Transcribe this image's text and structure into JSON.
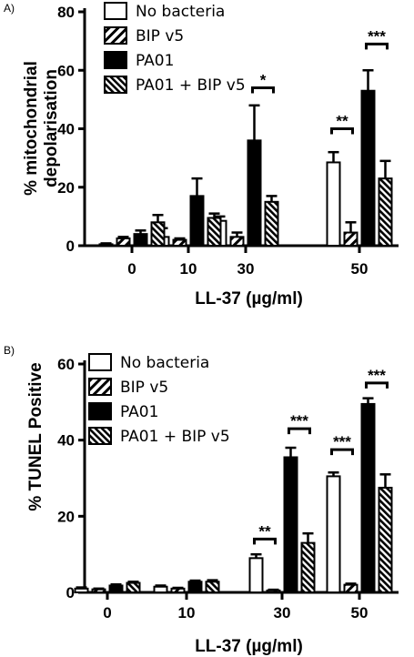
{
  "chart_data": [
    {
      "type": "bar",
      "panel_label": "A)",
      "title": "",
      "xlabel": "LL-37 (µg/ml)",
      "ylabel": "% mitochondrial depolarisation",
      "ylim": [
        0,
        80
      ],
      "yticks": [
        0,
        20,
        40,
        60,
        80
      ],
      "categories": [
        "0",
        "10",
        "30",
        "50"
      ],
      "legend_position": "top-left",
      "series": [
        {
          "name": "No bacteria",
          "style": "open",
          "values": [
            0.5,
            3,
            8.5,
            28.5
          ],
          "errors": [
            0.3,
            3,
            1.5,
            3.5
          ]
        },
        {
          "name": "BIP v5",
          "style": "hatched",
          "values": [
            2.5,
            2,
            3,
            4.5
          ],
          "errors": [
            0.5,
            0.5,
            1.5,
            3.5
          ]
        },
        {
          "name": "PA01",
          "style": "solid",
          "values": [
            4,
            17,
            36,
            53
          ],
          "errors": [
            1.2,
            6,
            12,
            7
          ]
        },
        {
          "name": "PA01 + BIP v5",
          "style": "hatched-dense",
          "values": [
            8,
            9.5,
            15,
            23
          ],
          "errors": [
            2.5,
            1.5,
            2,
            6
          ]
        }
      ],
      "significance": [
        {
          "category": "30",
          "pair": [
            "PA01",
            "PA01 + BIP v5"
          ],
          "label": "*",
          "y": 54
        },
        {
          "category": "50",
          "pair": [
            "No bacteria",
            "BIP v5"
          ],
          "label": "**",
          "y": 40
        },
        {
          "category": "50",
          "pair": [
            "PA01",
            "PA01 + BIP v5"
          ],
          "label": "***",
          "y": 69
        }
      ]
    },
    {
      "type": "bar",
      "panel_label": "B)",
      "title": "",
      "xlabel": "LL-37 (µg/ml)",
      "ylabel": "% TUNEL Positive",
      "ylim": [
        0,
        60
      ],
      "yticks": [
        0,
        20,
        40,
        60
      ],
      "categories": [
        "0",
        "10",
        "30",
        "50"
      ],
      "legend_position": "top-left",
      "series": [
        {
          "name": "No bacteria",
          "style": "open",
          "values": [
            1,
            1.5,
            9,
            30.5
          ],
          "errors": [
            0.3,
            0.3,
            1,
            1
          ]
        },
        {
          "name": "BIP v5",
          "style": "hatched",
          "values": [
            0.8,
            1,
            0.5,
            2
          ],
          "errors": [
            0.2,
            0.2,
            0.2,
            0.3
          ]
        },
        {
          "name": "PA01",
          "style": "solid",
          "values": [
            1.8,
            2.8,
            35.5,
            49.5
          ],
          "errors": [
            0.3,
            0.3,
            2.5,
            1.5
          ]
        },
        {
          "name": "PA01 + BIP v5",
          "style": "hatched-dense",
          "values": [
            2.5,
            2.8,
            13,
            27.5
          ],
          "errors": [
            0.3,
            0.4,
            2.5,
            3.5
          ]
        }
      ],
      "significance": [
        {
          "category": "30",
          "pair": [
            "No bacteria",
            "BIP v5"
          ],
          "label": "**",
          "y": 14
        },
        {
          "category": "30",
          "pair": [
            "PA01",
            "PA01 + BIP v5"
          ],
          "label": "***",
          "y": 43
        },
        {
          "category": "50",
          "pair": [
            "No bacteria",
            "BIP v5"
          ],
          "label": "***",
          "y": 37.5
        },
        {
          "category": "50",
          "pair": [
            "PA01",
            "PA01 + BIP v5"
          ],
          "label": "***",
          "y": 55
        }
      ]
    }
  ]
}
